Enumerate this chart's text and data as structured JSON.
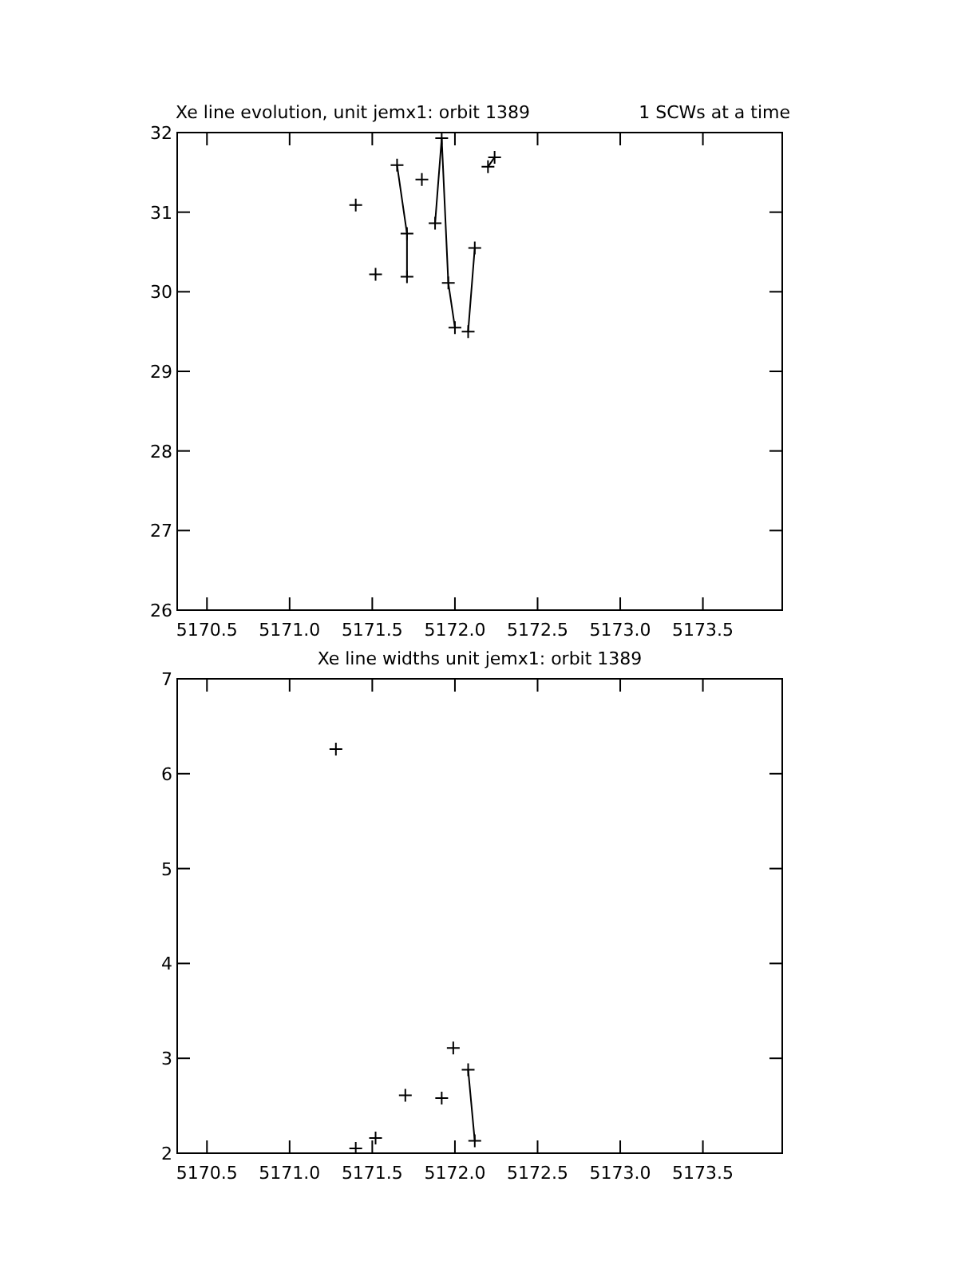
{
  "chart_data": [
    {
      "type": "line",
      "title": "Xe line evolution, unit jemx1: orbit 1389",
      "subtitle": "1 SCWs at a time",
      "marker": "cross",
      "line_style": "solid",
      "grid": false,
      "x": [
        5171.4,
        5171.46,
        5171.52,
        5171.58,
        5171.65,
        5171.71,
        5171.71,
        5171.75,
        5171.8,
        5171.84,
        5171.88,
        5171.92,
        5171.96,
        5172.0,
        5172.04,
        5172.08,
        5172.12,
        5172.16,
        5172.2,
        5172.24
      ],
      "series": [
        {
          "color": "#000000",
          "values": [
            31.09,
            null,
            30.22,
            null,
            31.59,
            30.73,
            30.19,
            null,
            31.41,
            null,
            30.86,
            31.93,
            30.11,
            29.55,
            null,
            29.5,
            30.55,
            null,
            31.57,
            31.69
          ]
        }
      ],
      "xlim": [
        5170.32,
        5173.98
      ],
      "xticks": [
        5170.5,
        {
          "value": 5171,
          "label": "5171.0"
        },
        5171.5,
        {
          "value": 5172,
          "label": "5172.0"
        },
        5172.5,
        {
          "value": 5173,
          "label": "5173.0"
        },
        5173.5
      ],
      "ylim": [
        26,
        32
      ],
      "yticks": [
        26,
        27,
        28,
        29,
        30,
        31,
        32
      ]
    },
    {
      "type": "line",
      "title": "Xe line widths unit jemx1: orbit 1389",
      "marker": "cross",
      "line_style": "solid",
      "grid": false,
      "x": [
        5171.28,
        5171.34,
        5171.4,
        5171.46,
        5171.52,
        5171.61,
        5171.7,
        5171.81,
        5171.92,
        5171.955,
        5171.99,
        5172.035,
        5172.08,
        5172.12
      ],
      "series": [
        {
          "color": "#000000",
          "values": [
            6.26,
            null,
            2.05,
            null,
            2.16,
            null,
            2.61,
            null,
            2.58,
            null,
            3.11,
            null,
            2.88,
            2.13
          ]
        }
      ],
      "xlim": [
        5170.32,
        5173.98
      ],
      "xticks": [
        5170.5,
        {
          "value": 5171,
          "label": "5171.0"
        },
        5171.5,
        {
          "value": 5172,
          "label": "5172.0"
        },
        5172.5,
        {
          "value": 5173,
          "label": "5173.0"
        },
        5173.5
      ],
      "ylim": [
        2,
        7
      ],
      "yticks": [
        2,
        3,
        4,
        5,
        6,
        7
      ]
    }
  ]
}
